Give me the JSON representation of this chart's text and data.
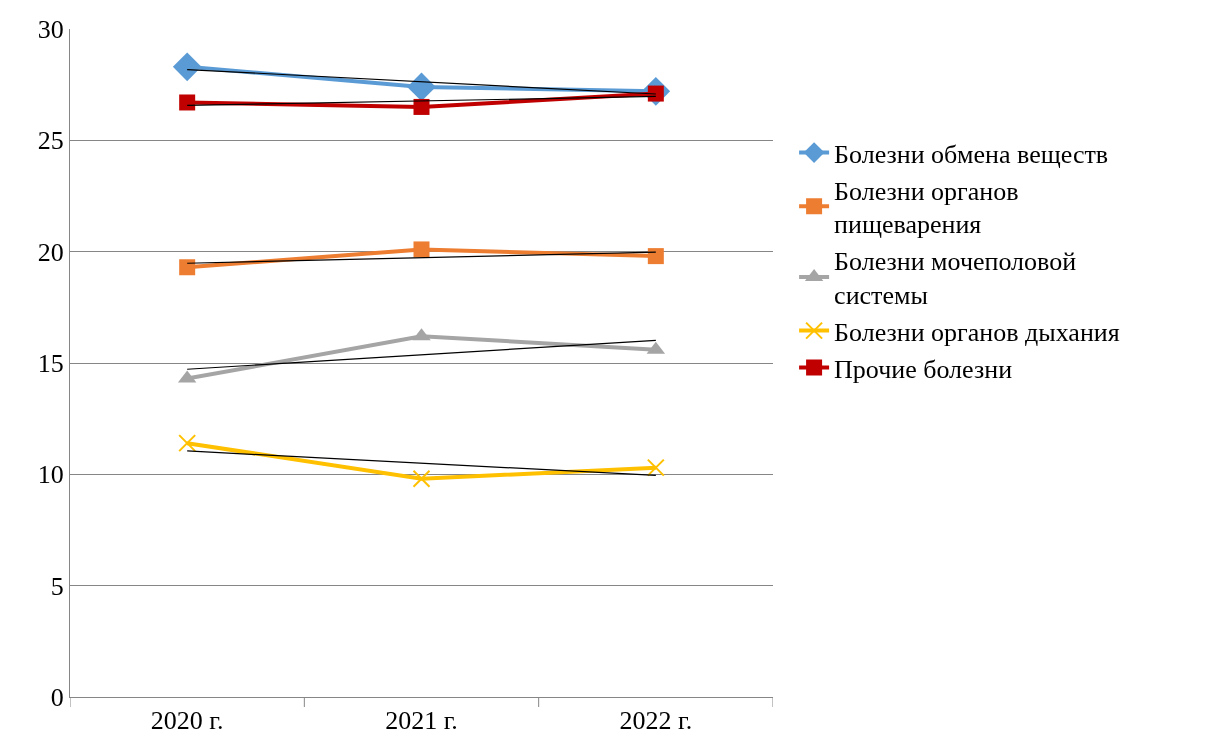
{
  "chart_data": {
    "type": "line",
    "categories": [
      "2020 г.",
      "2021 г.",
      "2022 г."
    ],
    "ylim": [
      0,
      30
    ],
    "yticks": [
      0,
      5,
      10,
      15,
      20,
      25,
      30
    ],
    "grid": "y",
    "legend": "right",
    "series": [
      {
        "name": "Болезни обмена веществ",
        "color": "#5b9bd5",
        "marker": "diamond",
        "values": [
          28.3,
          27.4,
          27.2
        ]
      },
      {
        "name": "Болезни органов пищеварения",
        "color": "#ed7d31",
        "marker": "square",
        "values": [
          19.3,
          20.1,
          19.8
        ]
      },
      {
        "name": "Болезни мочеполовой системы",
        "color": "#a5a5a5",
        "marker": "triangle",
        "values": [
          14.3,
          16.2,
          15.6
        ]
      },
      {
        "name": "Болезни органов дыхания",
        "color": "#ffc000",
        "marker": "cross",
        "values": [
          11.4,
          9.8,
          10.3
        ]
      },
      {
        "name": "Прочие болезни",
        "color": "#c00000",
        "marker": "square",
        "values": [
          26.7,
          26.5,
          27.1
        ]
      },
      {
        "color": "#000000",
        "marker": "none",
        "x": [
          "2020 г.",
          "2022 г."
        ],
        "values": [
          28.18,
          27.08
        ]
      },
      {
        "color": "#000000",
        "marker": "none",
        "x": [
          "2020 г.",
          "2022 г."
        ],
        "values": [
          19.48,
          19.98
        ]
      },
      {
        "color": "#000000",
        "marker": "none",
        "x": [
          "2020 г.",
          "2022 г."
        ],
        "values": [
          14.72,
          16.02
        ]
      },
      {
        "color": "#000000",
        "marker": "none",
        "x": [
          "2020 г.",
          "2022 г."
        ],
        "values": [
          11.05,
          9.95
        ]
      },
      {
        "color": "#000000",
        "marker": "none",
        "x": [
          "2020 г.",
          "2022 г."
        ],
        "values": [
          26.57,
          26.97
        ]
      }
    ]
  }
}
